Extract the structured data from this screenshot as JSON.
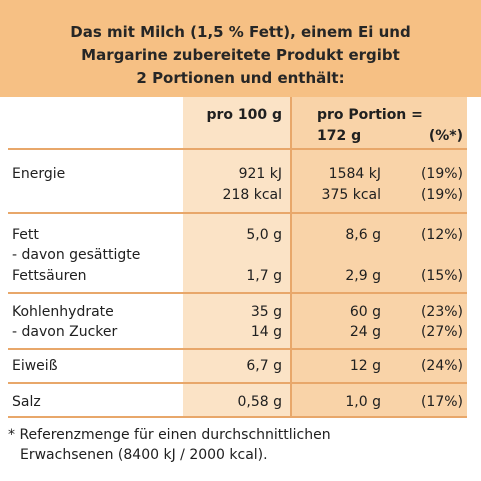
{
  "header": {
    "title_lines": [
      "Das mit Milch (1,5 % Fett), einem Ei und",
      "Margarine zubereitete Produkt ergibt",
      "2 Portionen und enthält:"
    ]
  },
  "columns": {
    "per100": "pro 100 g",
    "portion_line1": "pro Portion =",
    "portion_size": "172 g",
    "percent": "(%*)"
  },
  "rows": [
    {
      "label_lines": [
        "Energie"
      ],
      "per100": [
        "921 kJ",
        "218 kcal"
      ],
      "portion": [
        "1584 kJ",
        "375 kcal"
      ],
      "percent": [
        "(19%)",
        "(19%)"
      ]
    },
    {
      "label_lines": [
        "Fett"
      ],
      "per100": [
        "5,0 g"
      ],
      "portion": [
        "8,6 g"
      ],
      "percent": [
        "(12%)"
      ]
    },
    {
      "label_lines": [
        "- davon gesättigte",
        "Fettsäuren"
      ],
      "per100": [
        "1,7 g"
      ],
      "portion": [
        "2,9 g"
      ],
      "percent": [
        "(15%)"
      ]
    },
    {
      "label_lines": [
        "Kohlenhydrate"
      ],
      "per100": [
        "35 g"
      ],
      "portion": [
        "60 g"
      ],
      "percent": [
        "(23%)"
      ]
    },
    {
      "label_lines": [
        "- davon Zucker"
      ],
      "per100": [
        "14 g"
      ],
      "portion": [
        "24 g"
      ],
      "percent": [
        "(27%)"
      ]
    },
    {
      "label_lines": [
        "Eiweiß"
      ],
      "per100": [
        "6,7 g"
      ],
      "portion": [
        "12 g"
      ],
      "percent": [
        "(24%)"
      ]
    },
    {
      "label_lines": [
        "Salz"
      ],
      "per100": [
        "0,58 g"
      ],
      "portion": [
        "1,0 g"
      ],
      "percent": [
        "(17%)"
      ]
    }
  ],
  "footnote_lines": [
    "* Referenzmenge für einen durchschnittlichen",
    "Erwachsenen (8400 kJ / 2000 kcal)."
  ],
  "colors": {
    "header_bg": "#f6c084",
    "per100_bg": "#fbe3c6",
    "portion_bg": "#f9d3a8",
    "rule": "#e8a76a"
  }
}
